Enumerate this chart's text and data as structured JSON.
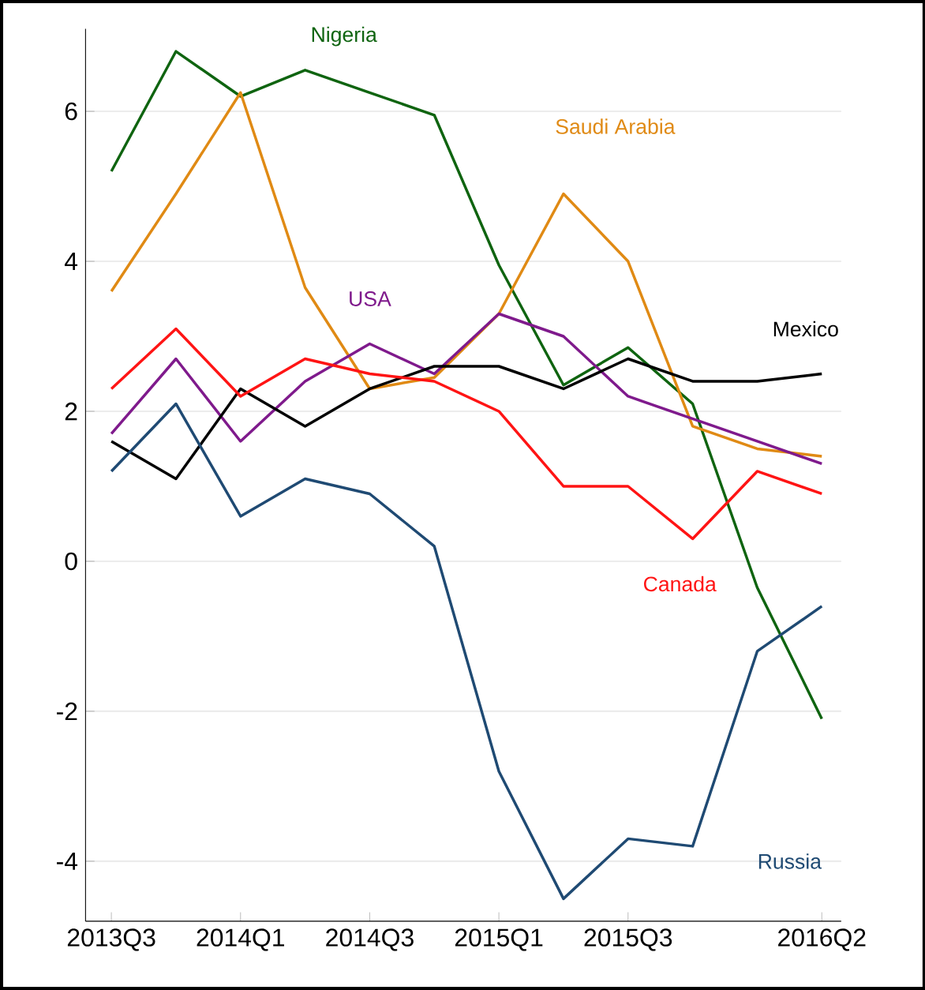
{
  "chart_data": {
    "type": "line",
    "categories": [
      "2013Q3",
      null,
      "2014Q1",
      null,
      "2014Q3",
      null,
      "2015Q1",
      null,
      "2015Q3",
      null,
      null,
      "2016Q2"
    ],
    "series": [
      {
        "name": "Nigeria",
        "color": "#0f6410",
        "values": [
          5.2,
          6.8,
          6.2,
          6.55,
          6.25,
          5.95,
          3.95,
          2.35,
          2.85,
          2.1,
          -0.35,
          -2.1
        ]
      },
      {
        "name": "Saudi Arabia",
        "color": "#e08a14",
        "values": [
          3.6,
          4.9,
          6.25,
          3.65,
          2.3,
          2.45,
          3.3,
          4.9,
          4.0,
          1.8,
          1.5,
          1.4
        ]
      },
      {
        "name": "USA",
        "color": "#7f1a8c",
        "values": [
          1.7,
          2.7,
          1.6,
          2.4,
          2.9,
          2.5,
          3.3,
          3.0,
          2.2,
          1.9,
          1.6,
          1.3
        ]
      },
      {
        "name": "Mexico",
        "color": "#000000",
        "values": [
          1.6,
          1.1,
          2.3,
          1.8,
          2.3,
          2.6,
          2.6,
          2.3,
          2.7,
          2.4,
          2.4,
          2.5
        ]
      },
      {
        "name": "Canada",
        "color": "#ff1414",
        "values": [
          2.3,
          3.1,
          2.2,
          2.7,
          2.5,
          2.4,
          2.0,
          1.0,
          1.0,
          0.3,
          1.2,
          0.9
        ]
      },
      {
        "name": "Russia",
        "color": "#1f4a73",
        "values": [
          1.2,
          2.1,
          0.6,
          1.1,
          0.9,
          0.2,
          -2.8,
          -4.5,
          -3.7,
          -3.8,
          -1.2,
          -0.6
        ]
      }
    ],
    "ylim": [
      -4.8,
      7.1
    ],
    "yticks": [
      -4,
      -2,
      0,
      2,
      4,
      6
    ],
    "grid": "y",
    "legend": false,
    "marker": "none",
    "line_style": "solid"
  }
}
